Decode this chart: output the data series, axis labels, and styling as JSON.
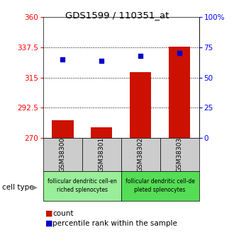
{
  "title": "GDS1599 / 110351_at",
  "samples": [
    "GSM38300",
    "GSM38301",
    "GSM38302",
    "GSM38303"
  ],
  "count_values": [
    283,
    278,
    319,
    338
  ],
  "percentile_values": [
    65,
    64,
    68,
    70
  ],
  "ylim_left": [
    270,
    360
  ],
  "ylim_right": [
    0,
    100
  ],
  "yticks_left": [
    270,
    292.5,
    315,
    337.5,
    360
  ],
  "yticks_right": [
    0,
    25,
    50,
    75,
    100
  ],
  "ytick_labels_left": [
    "270",
    "292.5",
    "315",
    "337.5",
    "360"
  ],
  "ytick_labels_right": [
    "0",
    "25",
    "50",
    "75",
    "100%"
  ],
  "bar_color": "#cc1100",
  "dot_color": "#0000cc",
  "bar_width": 0.55,
  "cell_types": [
    {
      "label": "follicular dendritic cell-en\nriched splenocytes",
      "samples": [
        0,
        1
      ],
      "color": "#99ee99"
    },
    {
      "label": "follicular dendritic cell-de\npleted splenocytes",
      "samples": [
        2,
        3
      ],
      "color": "#55dd55"
    }
  ],
  "cell_type_label": "cell type",
  "legend_count_label": "count",
  "legend_percentile_label": "percentile rank within the sample",
  "bar_color_legend": "#cc1100",
  "dot_color_legend": "#0000cc"
}
